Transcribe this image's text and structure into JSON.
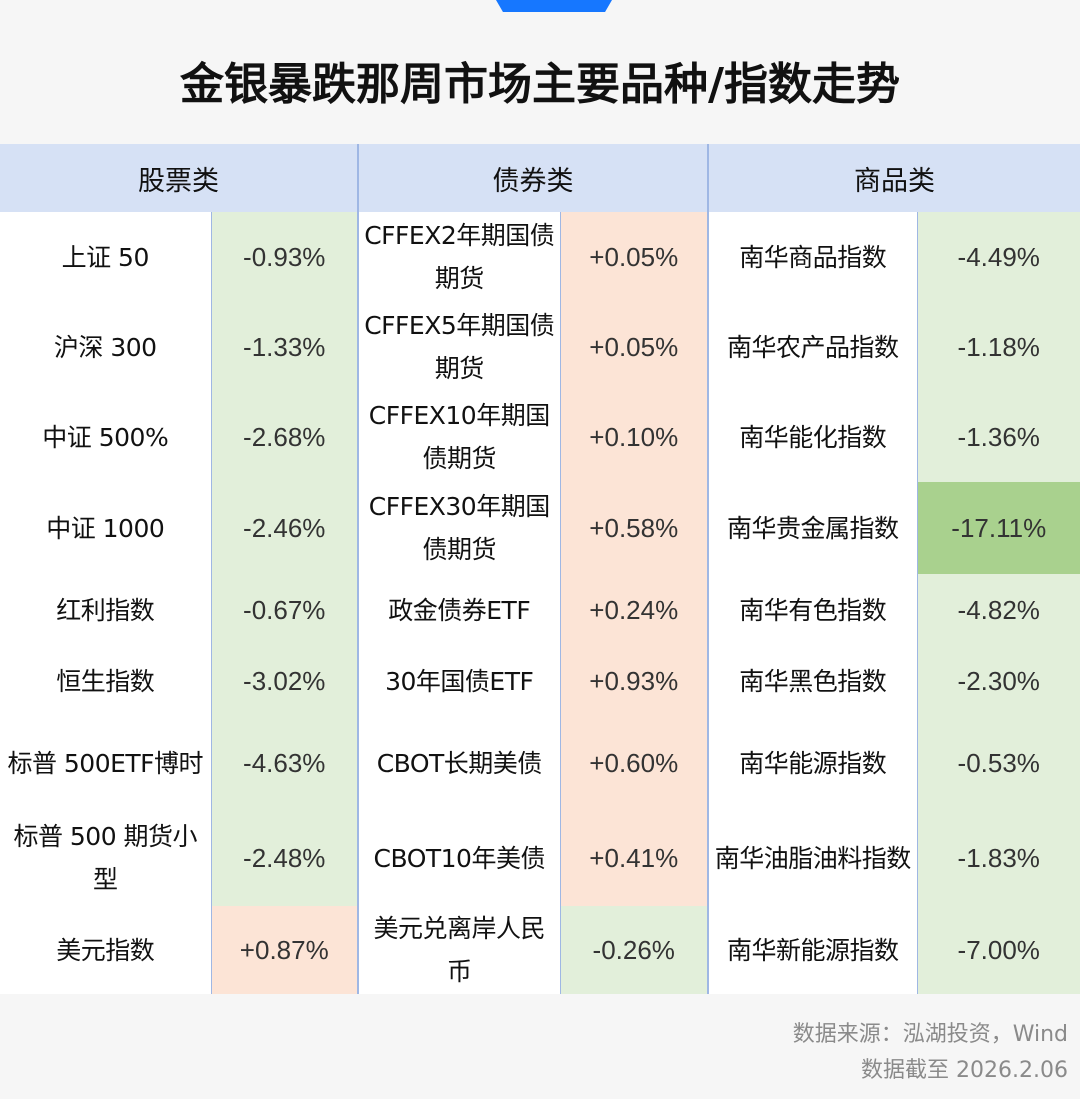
{
  "header": {
    "title": "金银暴跌那周市场主要品种/指数走势"
  },
  "chart_data": {
    "type": "table",
    "columns": [
      "股票类",
      "债券类",
      "商品类"
    ],
    "rows": [
      {
        "stock": {
          "name": "上证 50",
          "change": "-0.93%"
        },
        "bond": {
          "name": "CFFEX2年期国债期货",
          "change": "+0.05%"
        },
        "commodity": {
          "name": "南华商品指数",
          "change": "-4.49%"
        }
      },
      {
        "stock": {
          "name": "沪深 300",
          "change": "-1.33%"
        },
        "bond": {
          "name": "CFFEX5年期国债期货",
          "change": "+0.05%"
        },
        "commodity": {
          "name": "南华农产品指数",
          "change": "-1.18%"
        }
      },
      {
        "stock": {
          "name": "中证 500%",
          "change": "-2.68%"
        },
        "bond": {
          "name": "CFFEX10年期国债期货",
          "change": "+0.10%"
        },
        "commodity": {
          "name": "南华能化指数",
          "change": "-1.36%"
        }
      },
      {
        "stock": {
          "name": "中证 1000",
          "change": "-2.46%"
        },
        "bond": {
          "name": "CFFEX30年期国债期货",
          "change": "+0.58%"
        },
        "commodity": {
          "name": "南华贵金属指数",
          "change": "-17.11%"
        }
      },
      {
        "stock": {
          "name": "红利指数",
          "change": "-0.67%"
        },
        "bond": {
          "name": "政金债券ETF",
          "change": "+0.24%"
        },
        "commodity": {
          "name": "南华有色指数",
          "change": "-4.82%"
        }
      },
      {
        "stock": {
          "name": "恒生指数",
          "change": "-3.02%"
        },
        "bond": {
          "name": "30年国债ETF",
          "change": "+0.93%"
        },
        "commodity": {
          "name": "南华黑色指数",
          "change": "-2.30%"
        }
      },
      {
        "stock": {
          "name": "标普 500ETF博时",
          "change": "-4.63%"
        },
        "bond": {
          "name": "CBOT长期美债",
          "change": "+0.60%"
        },
        "commodity": {
          "name": "南华能源指数",
          "change": "-0.53%"
        }
      },
      {
        "stock": {
          "name": "标普 500 期货小型",
          "change": "-2.48%"
        },
        "bond": {
          "name": "CBOT10年美债",
          "change": "+0.41%"
        },
        "commodity": {
          "name": "南华油脂油料指数",
          "change": "-1.83%"
        }
      },
      {
        "stock": {
          "name": "美元指数",
          "change": "+0.87%"
        },
        "bond": {
          "name": "美元兑离岸人民币",
          "change": "-0.26%"
        },
        "commodity": {
          "name": "南华新能源指数",
          "change": "-7.00%"
        }
      }
    ],
    "colors": {
      "header_bg": "#d6e1f5",
      "negative_bg": "#e2efda",
      "strong_negative_bg": "#a9d18e",
      "positive_bg": "#fce4d6"
    }
  },
  "footer": {
    "source": "数据来源：泓湖投资，Wind",
    "date": "数据截至 2026.2.06"
  }
}
